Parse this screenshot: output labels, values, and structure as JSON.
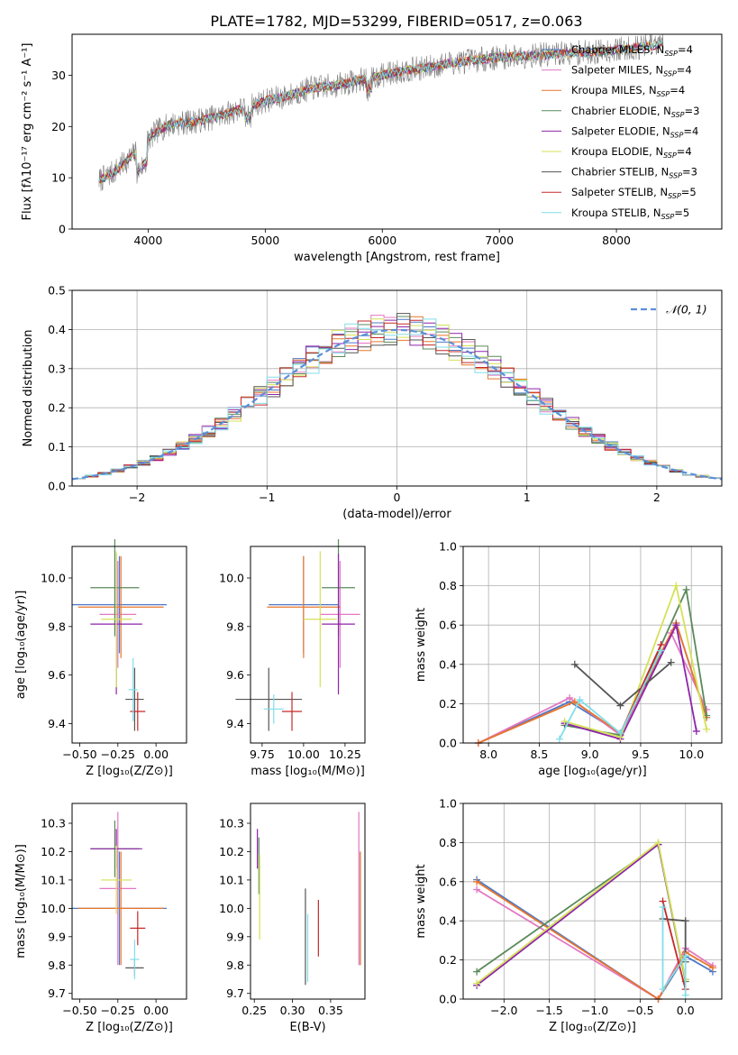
{
  "title": "PLATE=1782, MJD=53299, FIBERID=0517, z=0.063",
  "colors": {
    "chabrier_miles": "#4e79c8",
    "salpeter_miles": "#e377c2",
    "kroupa_miles": "#e8762c",
    "chabrier_elodie": "#5b8a5b",
    "salpeter_elodie": "#8e24aa",
    "kroupa_elodie": "#d4e157",
    "chabrier_stelib": "#555555",
    "salpeter_stelib": "#c62828",
    "kroupa_stelib": "#80deea",
    "data": "#7f7f7f",
    "gaussian": "#5b8fd9"
  },
  "chart_data": [
    {
      "type": "line",
      "xlabel": "wavelength [Angstrom, rest frame]",
      "ylabel": "Flux [fλ10⁻¹⁷ erg cm⁻² s⁻¹ A⁻¹]",
      "xlim": [
        3350,
        8900
      ],
      "ylim": [
        0,
        38
      ],
      "xticks": [
        "4000",
        "5000",
        "6000",
        "7000",
        "8000"
      ],
      "yticks": [
        "0",
        "10",
        "20",
        "30"
      ],
      "legend_position": "right",
      "legend": [
        {
          "label": "Chabrier MILES, N",
          "sub": "SSP",
          "tail": "=4",
          "key": "chabrier_miles"
        },
        {
          "label": "Salpeter MILES, N",
          "sub": "SSP",
          "tail": "=4",
          "key": "salpeter_miles"
        },
        {
          "label": "Kroupa MILES, N",
          "sub": "SSP",
          "tail": "=4",
          "key": "kroupa_miles"
        },
        {
          "label": "Chabrier ELODIE, N",
          "sub": "SSP",
          "tail": "=3",
          "key": "chabrier_elodie"
        },
        {
          "label": "Salpeter ELODIE, N",
          "sub": "SSP",
          "tail": "=4",
          "key": "salpeter_elodie"
        },
        {
          "label": "Kroupa ELODIE, N",
          "sub": "SSP",
          "tail": "=4",
          "key": "kroupa_elodie"
        },
        {
          "label": "Chabrier STELIB, N",
          "sub": "SSP",
          "tail": "=3",
          "key": "chabrier_stelib"
        },
        {
          "label": "Salpeter STELIB, N",
          "sub": "SSP",
          "tail": "=5",
          "key": "salpeter_stelib"
        },
        {
          "label": "Kroupa STELIB, N",
          "sub": "SSP",
          "tail": "=5",
          "key": "kroupa_stelib"
        }
      ],
      "continuum": {
        "x": [
          3580,
          3700,
          3800,
          3900,
          4000,
          4100,
          4200,
          4400,
          4600,
          4800,
          5000,
          5200,
          5400,
          5600,
          5800,
          6000,
          6200,
          6400,
          6600,
          6800,
          7000,
          7200,
          7400,
          7600,
          7800,
          8000,
          8200,
          8400
        ],
        "y": [
          9.5,
          11,
          13,
          15,
          17.5,
          19.5,
          20.5,
          21,
          22,
          23.5,
          25,
          26,
          27.5,
          28,
          29,
          30,
          31,
          31.5,
          32.5,
          33,
          33.5,
          33.8,
          34,
          34.3,
          34.5,
          35,
          35.5,
          36
        ]
      }
    },
    {
      "type": "bar",
      "xlabel": "(data-model)/error",
      "ylabel": "Normed distribution",
      "xlim": [
        -2.5,
        2.5
      ],
      "ylim": [
        0,
        0.5
      ],
      "xticks": [
        "−2",
        "−1",
        "0",
        "1",
        "2"
      ],
      "yticks": [
        "0.0",
        "0.1",
        "0.2",
        "0.3",
        "0.4",
        "0.5"
      ],
      "grid": true,
      "legend_label": "𝒩(0, 1)",
      "legend_position": "top-right",
      "bin_width": 0.1
    },
    {
      "type": "scatter",
      "name": "age vs Z",
      "xlabel": "Z [log₁₀(Z/Z⊙)]",
      "ylabel": "age  [log₁₀(age/yr)]",
      "xlim": [
        -0.55,
        0.2
      ],
      "ylim": [
        9.32,
        10.13
      ],
      "xticks": [
        "−0.50",
        "−0.25",
        "0.00"
      ],
      "yticks": [
        "9.4",
        "9.6",
        "9.8",
        "10.0"
      ],
      "points": [
        {
          "key": "chabrier_miles",
          "x": -0.24,
          "xerr": 0.31,
          "y": 9.89,
          "yerr": 0.2
        },
        {
          "key": "salpeter_miles",
          "x": -0.25,
          "xerr": 0.12,
          "y": 9.85,
          "yerr": 0.22
        },
        {
          "key": "kroupa_miles",
          "x": -0.23,
          "xerr": 0.28,
          "y": 9.88,
          "yerr": 0.21
        },
        {
          "key": "chabrier_elodie",
          "x": -0.27,
          "xerr": 0.16,
          "y": 9.96,
          "yerr": 0.2
        },
        {
          "key": "salpeter_elodie",
          "x": -0.26,
          "xerr": 0.17,
          "y": 9.81,
          "yerr": 0.29
        },
        {
          "key": "kroupa_elodie",
          "x": -0.26,
          "xerr": 0.1,
          "y": 9.83,
          "yerr": 0.28
        },
        {
          "key": "chabrier_stelib",
          "x": -0.14,
          "xerr": 0.06,
          "y": 9.5,
          "yerr": 0.13
        },
        {
          "key": "salpeter_stelib",
          "x": -0.12,
          "xerr": 0.05,
          "y": 9.45,
          "yerr": 0.08
        },
        {
          "key": "kroupa_stelib",
          "x": -0.15,
          "xerr": 0.03,
          "y": 9.54,
          "yerr": 0.13
        }
      ]
    },
    {
      "type": "scatter",
      "name": "age vs mass",
      "xlabel": "mass [log₁₀(M/M⊙)]",
      "ylabel": "",
      "xlim": [
        9.68,
        10.37
      ],
      "ylim": [
        9.32,
        10.13
      ],
      "xticks": [
        "9.75",
        "10.00",
        "10.25"
      ],
      "yticks": [
        "9.4",
        "9.6",
        "9.8",
        "10.0"
      ],
      "points": [
        {
          "key": "chabrier_miles",
          "x": 10.0,
          "xerr": 0.21,
          "y": 9.89,
          "yerr": 0.2
        },
        {
          "key": "salpeter_miles",
          "x": 10.22,
          "xerr": 0.12,
          "y": 9.85,
          "yerr": 0.22
        },
        {
          "key": "kroupa_miles",
          "x": 10.0,
          "xerr": 0.22,
          "y": 9.88,
          "yerr": 0.21
        },
        {
          "key": "chabrier_elodie",
          "x": 10.21,
          "xerr": 0.1,
          "y": 9.96,
          "yerr": 0.2
        },
        {
          "key": "salpeter_elodie",
          "x": 10.21,
          "xerr": 0.1,
          "y": 9.81,
          "yerr": 0.29
        },
        {
          "key": "kroupa_elodie",
          "x": 10.1,
          "xerr": 0.1,
          "y": 9.83,
          "yerr": 0.28
        },
        {
          "key": "chabrier_stelib",
          "x": 9.79,
          "xerr": 0.2,
          "y": 9.5,
          "yerr": 0.13
        },
        {
          "key": "salpeter_stelib",
          "x": 9.93,
          "xerr": 0.06,
          "y": 9.45,
          "yerr": 0.08
        },
        {
          "key": "kroupa_stelib",
          "x": 9.82,
          "xerr": 0.06,
          "y": 9.46,
          "yerr": 0.06
        }
      ]
    },
    {
      "type": "line",
      "name": "mass weight vs age",
      "xlabel": "age  [log₁₀(age/yr)]",
      "ylabel": "mass weight",
      "xlim": [
        7.75,
        10.3
      ],
      "ylim": [
        0,
        1
      ],
      "xticks": [
        "8.0",
        "8.5",
        "9.0",
        "9.5",
        "10.0"
      ],
      "yticks": [
        "0.0",
        "0.2",
        "0.4",
        "0.6",
        "0.8",
        "1.0"
      ],
      "grid": true,
      "series": [
        {
          "key": "chabrier_miles",
          "x": [
            7.9,
            8.8,
            9.3,
            9.85,
            10.15
          ],
          "y": [
            0.0,
            0.21,
            0.05,
            0.61,
            0.13
          ]
        },
        {
          "key": "salpeter_miles",
          "x": [
            7.9,
            8.8,
            9.3,
            9.8,
            10.15
          ],
          "y": [
            0.0,
            0.23,
            0.04,
            0.56,
            0.17
          ]
        },
        {
          "key": "kroupa_miles",
          "x": [
            7.9,
            8.85,
            9.3,
            9.85,
            10.15
          ],
          "y": [
            0.0,
            0.21,
            0.05,
            0.61,
            0.13
          ]
        },
        {
          "key": "chabrier_elodie",
          "x": [
            8.75,
            9.3,
            9.95,
            10.15
          ],
          "y": [
            0.09,
            0.04,
            0.78,
            0.14
          ]
        },
        {
          "key": "salpeter_elodie",
          "x": [
            8.75,
            9.3,
            9.85,
            10.05
          ],
          "y": [
            0.1,
            0.02,
            0.6,
            0.06
          ]
        },
        {
          "key": "kroupa_elodie",
          "x": [
            8.75,
            9.3,
            9.85,
            10.15
          ],
          "y": [
            0.11,
            0.03,
            0.8,
            0.07
          ]
        },
        {
          "key": "chabrier_stelib",
          "x": [
            8.85,
            9.3,
            9.8
          ],
          "y": [
            0.4,
            0.19,
            0.41
          ]
        },
        {
          "key": "salpeter_stelib",
          "x": [
            9.3,
            9.7
          ],
          "y": [
            0.05,
            0.5
          ]
        },
        {
          "key": "kroupa_stelib",
          "x": [
            8.7,
            8.9,
            9.3,
            9.7
          ],
          "y": [
            0.02,
            0.22,
            0.05,
            0.47
          ]
        }
      ]
    },
    {
      "type": "scatter",
      "name": "mass vs Z",
      "xlabel": "Z [log₁₀(Z/Z⊙)]",
      "ylabel": "mass [log₁₀(M/M⊙)]",
      "xlim": [
        -0.55,
        0.2
      ],
      "ylim": [
        9.68,
        10.37
      ],
      "xticks": [
        "−0.50",
        "−0.25",
        "0.00"
      ],
      "yticks": [
        "9.7",
        "9.8",
        "9.9",
        "10.0",
        "10.1",
        "10.2",
        "10.3"
      ],
      "points": [
        {
          "key": "chabrier_miles",
          "x": -0.24,
          "xerr": 0.31,
          "y": 10.0,
          "yerr": 0.2
        },
        {
          "key": "salpeter_miles",
          "x": -0.25,
          "xerr": 0.12,
          "y": 10.07,
          "yerr": 0.27
        },
        {
          "key": "kroupa_miles",
          "x": -0.23,
          "xerr": 0.28,
          "y": 10.0,
          "yerr": 0.2
        },
        {
          "key": "chabrier_elodie",
          "x": -0.27,
          "xerr": 0.16,
          "y": 10.21,
          "yerr": 0.1
        },
        {
          "key": "salpeter_elodie",
          "x": -0.26,
          "xerr": 0.17,
          "y": 10.21,
          "yerr": 0.07
        },
        {
          "key": "kroupa_elodie",
          "x": -0.26,
          "xerr": 0.1,
          "y": 10.1,
          "yerr": 0.12
        },
        {
          "key": "chabrier_stelib",
          "x": -0.14,
          "xerr": 0.06,
          "y": 9.79,
          "yerr": 0.03
        },
        {
          "key": "salpeter_stelib",
          "x": -0.12,
          "xerr": 0.05,
          "y": 9.93,
          "yerr": 0.06
        },
        {
          "key": "kroupa_stelib",
          "x": -0.14,
          "xerr": 0.03,
          "y": 9.82,
          "yerr": 0.07
        }
      ]
    },
    {
      "type": "scatter",
      "name": "mass vs E(B-V)",
      "xlabel": "E(B-V)",
      "ylabel": "",
      "xlim": [
        0.245,
        0.395
      ],
      "ylim": [
        9.68,
        10.37
      ],
      "xticks": [
        "0.25",
        "0.30",
        "0.35"
      ],
      "yticks": [
        "9.7",
        "9.8",
        "9.9",
        "10.0",
        "10.1",
        "10.2",
        "10.3"
      ],
      "points": [
        {
          "key": "chabrier_miles",
          "x": 0.389,
          "y": 10.0,
          "yerr": 0.2
        },
        {
          "key": "salpeter_miles",
          "x": 0.387,
          "y": 10.07,
          "yerr": 0.27
        },
        {
          "key": "kroupa_miles",
          "x": 0.389,
          "y": 10.0,
          "yerr": 0.2
        },
        {
          "key": "chabrier_elodie",
          "x": 0.256,
          "y": 10.15,
          "yerr": 0.1
        },
        {
          "key": "salpeter_elodie",
          "x": 0.254,
          "y": 10.21,
          "yerr": 0.07
        },
        {
          "key": "kroupa_elodie",
          "x": 0.257,
          "y": 10.04,
          "yerr": 0.15
        },
        {
          "key": "chabrier_stelib",
          "x": 0.317,
          "y": 9.9,
          "yerr": 0.17
        },
        {
          "key": "salpeter_stelib",
          "x": 0.334,
          "y": 9.93,
          "yerr": 0.1
        },
        {
          "key": "kroupa_stelib",
          "x": 0.32,
          "y": 9.86,
          "yerr": 0.12
        }
      ]
    },
    {
      "type": "line",
      "name": "mass weight vs Z",
      "xlabel": "Z [log₁₀(Z/Z⊙)]",
      "ylabel": "mass weight",
      "xlim": [
        -2.45,
        0.4
      ],
      "ylim": [
        0,
        1
      ],
      "xticks": [
        "−2.0",
        "−1.5",
        "−1.0",
        "−0.5",
        "0.0"
      ],
      "yticks": [
        "0.0",
        "0.2",
        "0.4",
        "0.6",
        "0.8",
        "1.0"
      ],
      "grid": true,
      "series": [
        {
          "key": "chabrier_miles",
          "x": [
            -2.3,
            -0.3,
            0.0,
            0.3
          ],
          "y": [
            0.61,
            0.0,
            0.22,
            0.14
          ]
        },
        {
          "key": "salpeter_miles",
          "x": [
            -2.3,
            -0.3,
            0.0,
            0.3
          ],
          "y": [
            0.56,
            0.0,
            0.26,
            0.17
          ]
        },
        {
          "key": "kroupa_miles",
          "x": [
            -2.3,
            -0.3,
            0.0,
            0.3
          ],
          "y": [
            0.6,
            0.0,
            0.24,
            0.16
          ]
        },
        {
          "key": "chabrier_elodie",
          "x": [
            -2.3,
            -0.3,
            0.0
          ],
          "y": [
            0.14,
            0.79,
            0.09
          ]
        },
        {
          "key": "salpeter_elodie",
          "x": [
            -2.3,
            -0.3,
            0.0
          ],
          "y": [
            0.07,
            0.79,
            0.1
          ]
        },
        {
          "key": "kroupa_elodie",
          "x": [
            -2.3,
            -0.3,
            0.0
          ],
          "y": [
            0.08,
            0.8,
            0.1
          ]
        },
        {
          "key": "chabrier_stelib",
          "x": [
            -0.25,
            0.0,
            0.0
          ],
          "y": [
            0.41,
            0.4,
            0.19
          ]
        },
        {
          "key": "salpeter_stelib",
          "x": [
            -0.25,
            0.0
          ],
          "y": [
            0.5,
            0.05
          ]
        },
        {
          "key": "kroupa_stelib",
          "x": [
            -0.25,
            -0.25,
            0.0,
            0.0
          ],
          "y": [
            0.47,
            0.05,
            0.22,
            0.02
          ]
        }
      ]
    }
  ]
}
